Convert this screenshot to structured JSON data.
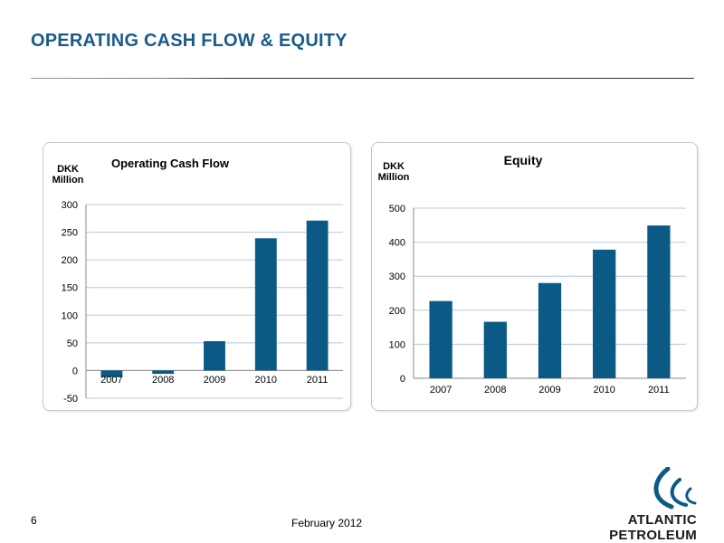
{
  "slide": {
    "title": "OPERATING CASH FLOW & EQUITY",
    "page_number": "6",
    "date": "February 2012",
    "logo_text": "ATLANTIC PETROLEUM"
  },
  "colors": {
    "bar": "#0b5a86",
    "title": "#1a5a8a",
    "grid": "#b7c9dd"
  },
  "chart_data": [
    {
      "type": "bar",
      "title": "Operating Cash Flow",
      "ylabel": "DKK Million",
      "categories": [
        "2007",
        "2008",
        "2009",
        "2010",
        "2011"
      ],
      "values": [
        -12,
        -6,
        53,
        239,
        271
      ],
      "ylim": [
        -50,
        300
      ],
      "yticks": [
        -50,
        0,
        50,
        100,
        150,
        200,
        250,
        300
      ],
      "grid": true,
      "legend": "none"
    },
    {
      "type": "bar",
      "title": "Equity",
      "ylabel": "DKK Million",
      "categories": [
        "2007",
        "2008",
        "2009",
        "2010",
        "2011"
      ],
      "values": [
        227,
        166,
        280,
        378,
        449
      ],
      "ylim": [
        0,
        500
      ],
      "yticks": [
        0,
        100,
        200,
        300,
        400,
        500
      ],
      "grid": true,
      "legend": "none"
    }
  ]
}
